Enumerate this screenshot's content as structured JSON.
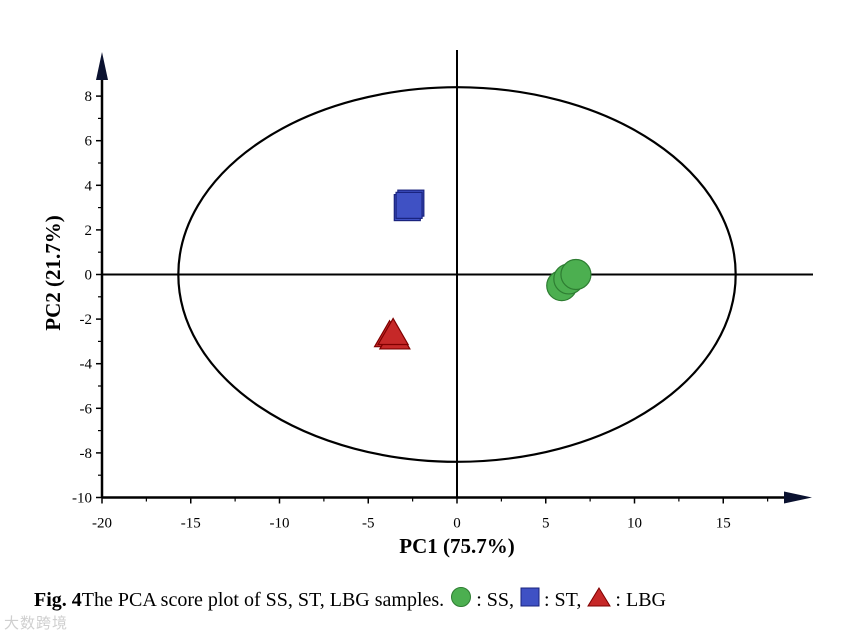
{
  "chart_data": {
    "type": "scatter",
    "xlabel": "PC1 (75.7%)",
    "ylabel": "PC2 (21.7%)",
    "xlim": [
      -20,
      20
    ],
    "ylim": [
      -10,
      10
    ],
    "xticks": [
      -20,
      -15,
      -10,
      -5,
      0,
      5,
      10,
      15
    ],
    "yticks": [
      -10,
      -8,
      -6,
      -4,
      -2,
      0,
      2,
      4,
      6,
      8
    ],
    "ellipse": {
      "cx": 0,
      "cy": 0,
      "rx": 15.7,
      "ry": 8.4
    },
    "series": [
      {
        "name": "SS",
        "marker": "circle",
        "color": "#4caf50",
        "points": [
          [
            5.9,
            -0.5
          ],
          [
            6.3,
            -0.2
          ],
          [
            6.7,
            0.0
          ]
        ]
      },
      {
        "name": "ST",
        "marker": "square",
        "color": "#3f51c4",
        "points": [
          [
            -2.8,
            3.0
          ],
          [
            -2.6,
            3.2
          ],
          [
            -2.7,
            3.1
          ]
        ]
      },
      {
        "name": "LBG",
        "marker": "triangle",
        "color": "#c62828",
        "points": [
          [
            -3.8,
            -2.7
          ],
          [
            -3.5,
            -2.8
          ],
          [
            -3.6,
            -2.6
          ]
        ]
      }
    ]
  },
  "caption": {
    "label": "Fig. 4",
    "text": " The PCA score plot of SS, ST, LBG samples.",
    "items": [
      {
        "text": ": SS,",
        "marker": "circle"
      },
      {
        "text": ": ST,",
        "marker": "square"
      },
      {
        "text": ": LBG",
        "marker": "triangle"
      }
    ]
  },
  "watermark": "大数跨境"
}
